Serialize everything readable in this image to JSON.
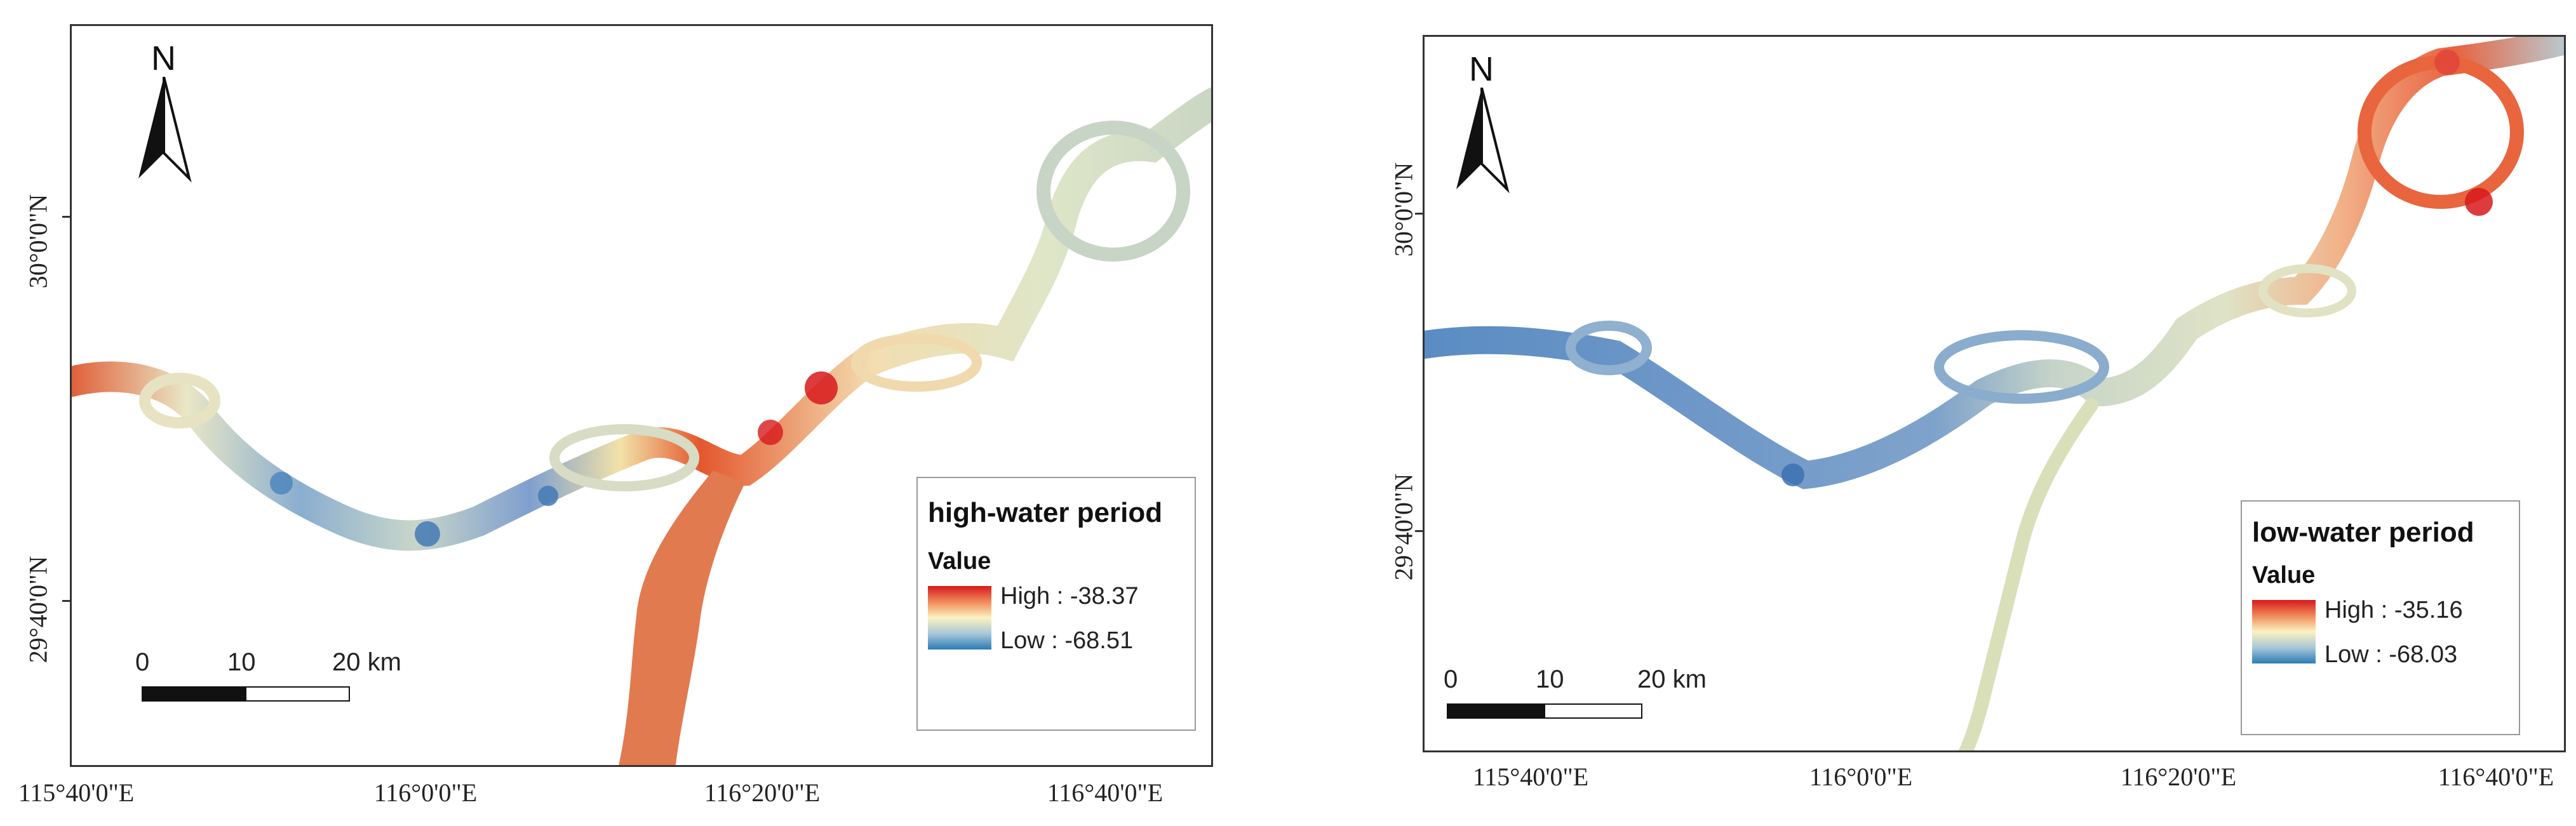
{
  "colors": {
    "high": "#d7191c",
    "mid": "#fbf3c0",
    "low": "#2c7bb6",
    "frame": "#333333"
  },
  "left_map": {
    "north_label": "N",
    "x_ticks": [
      "115°40'0\"E",
      "116°0'0\"E",
      "116°20'0\"E",
      "116°40'0\"E"
    ],
    "y_ticks": [
      "30°0'0\"N",
      "29°40'0\"N"
    ],
    "legend": {
      "title": "high-water period",
      "value_label": "Value",
      "high": "High : -38.37",
      "low": "Low : -68.51"
    },
    "scale": {
      "labels": [
        "0",
        "10",
        "20 km"
      ]
    }
  },
  "right_map": {
    "north_label": "N",
    "x_ticks": [
      "115°40'0\"E",
      "116°0'0\"E",
      "116°20'0\"E",
      "116°40'0\"E"
    ],
    "y_ticks": [
      "30°0'0\"N",
      "29°40'0\"N"
    ],
    "legend": {
      "title": "low-water period",
      "value_label": "Value",
      "high": "High : -35.16",
      "low": "Low : -68.03"
    },
    "scale": {
      "labels": [
        "0",
        "10",
        "20 km"
      ]
    }
  }
}
